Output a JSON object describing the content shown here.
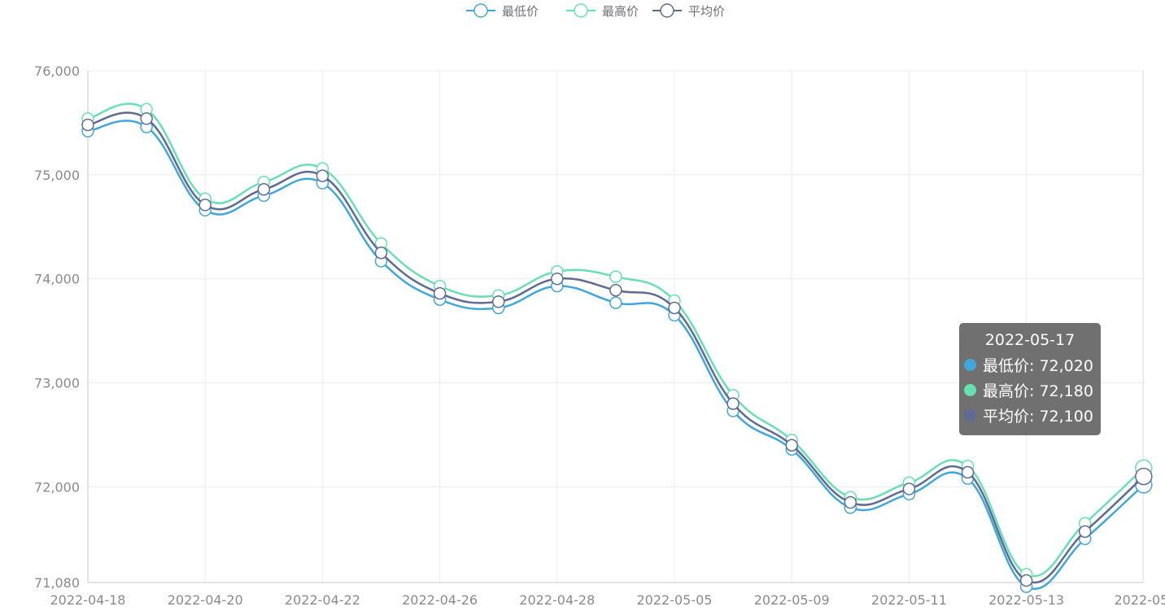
{
  "chart_data": {
    "type": "line",
    "smooth": true,
    "x": [
      "2022-04-18",
      "2022-04-19",
      "2022-04-20",
      "2022-04-21",
      "2022-04-22",
      "2022-04-25",
      "2022-04-26",
      "2022-04-27",
      "2022-04-28",
      "2022-04-29",
      "2022-05-05",
      "2022-05-06",
      "2022-05-09",
      "2022-05-10",
      "2022-05-11",
      "2022-05-12",
      "2022-05-13",
      "2022-05-16",
      "2022-05-17"
    ],
    "xtick_labels": [
      "2022-04-18",
      "2022-04-20",
      "2022-04-22",
      "2022-04-26",
      "2022-04-28",
      "2022-05-05",
      "2022-05-09",
      "2022-05-11",
      "2022-05-13",
      "2022-05-"
    ],
    "ylim": [
      71080,
      76000
    ],
    "ytick_labels": [
      "76,000",
      "75,000",
      "74,000",
      "73,000",
      "72,000",
      "71,080"
    ],
    "yticks": [
      76000,
      75000,
      74000,
      73000,
      72000,
      71080
    ],
    "grid": true,
    "legend_position": "top-center",
    "series": [
      {
        "name": "最低价",
        "color": "#3fa7dc",
        "values": [
          75420,
          75460,
          74660,
          74800,
          74920,
          74170,
          73800,
          73720,
          73930,
          73770,
          73650,
          72730,
          72360,
          71800,
          71930,
          72080,
          71040,
          71500,
          72020
        ]
      },
      {
        "name": "最高价",
        "color": "#67e0b4",
        "values": [
          75540,
          75630,
          74770,
          74930,
          75060,
          74340,
          73930,
          73840,
          74070,
          74020,
          73790,
          72880,
          72450,
          71900,
          72040,
          72200,
          71160,
          71650,
          72180
        ]
      },
      {
        "name": "平均价",
        "color": "#5f6b92",
        "values": [
          75480,
          75540,
          74710,
          74860,
          74990,
          74250,
          73860,
          73780,
          74000,
          73890,
          73720,
          72800,
          72400,
          71850,
          71980,
          72140,
          71100,
          71570,
          72100
        ]
      }
    ]
  },
  "tooltip": {
    "date": "2022-05-17",
    "rows": [
      {
        "text": "最低价: 72,020",
        "color": "#3fa7dc"
      },
      {
        "text": "最高价: 72,180",
        "color": "#67e0b4"
      },
      {
        "text": "平均价: 72,100",
        "color": "#5f6b92"
      }
    ]
  }
}
